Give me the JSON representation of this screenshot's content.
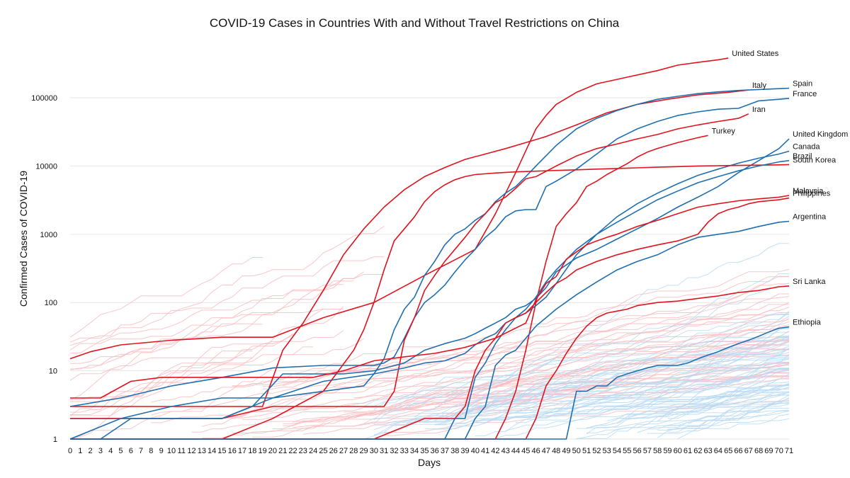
{
  "chart_data": {
    "type": "line",
    "title": "COVID-19 Cases in Countries With and Without Travel Restrictions on China",
    "xlabel": "Days",
    "ylabel": "Confirmed Cases of COVID-19",
    "yscale": "log",
    "xlim": [
      0,
      71
    ],
    "ylim": [
      1,
      400000
    ],
    "xticks": [
      0,
      1,
      2,
      3,
      4,
      5,
      6,
      7,
      8,
      9,
      10,
      11,
      12,
      13,
      14,
      15,
      16,
      17,
      18,
      19,
      20,
      21,
      22,
      23,
      24,
      25,
      26,
      27,
      28,
      29,
      30,
      31,
      32,
      33,
      34,
      35,
      36,
      37,
      38,
      39,
      40,
      41,
      42,
      43,
      44,
      45,
      46,
      47,
      48,
      49,
      50,
      51,
      52,
      53,
      54,
      55,
      56,
      57,
      58,
      59,
      60,
      61,
      62,
      63,
      64,
      65,
      66,
      67,
      68,
      69,
      70,
      71
    ],
    "yticks": [
      1,
      10,
      100,
      1000,
      10000,
      100000
    ],
    "yticklabels": [
      "1",
      "10",
      "100",
      "1000",
      "10000",
      "100000"
    ],
    "colors": {
      "restricted": "#e0141e",
      "unrestricted": "#1f6fb0",
      "restricted_light": "#f7b9bd",
      "unrestricted_light": "#b7d8f1"
    },
    "series": [
      {
        "name": "United States",
        "group": "restricted",
        "x": [
          0,
          2,
          5,
          10,
          15,
          20,
          25,
          30,
          35,
          40,
          42,
          44,
          46,
          47,
          48,
          50,
          52,
          55,
          58,
          60,
          62,
          64,
          65
        ],
        "y": [
          15,
          19,
          24,
          28,
          31,
          31,
          60,
          100,
          250,
          600,
          2000,
          8000,
          35000,
          55000,
          80000,
          120000,
          160000,
          200000,
          250000,
          300000,
          330000,
          360000,
          380000
        ]
      },
      {
        "name": "Italy",
        "group": "restricted",
        "x": [
          0,
          5,
          10,
          15,
          17,
          19,
          21,
          23,
          25,
          27,
          29,
          31,
          33,
          35,
          37,
          39,
          41,
          43,
          45,
          47,
          50,
          53,
          56,
          59,
          62,
          65,
          67
        ],
        "y": [
          3,
          3,
          3,
          3,
          3,
          3,
          20,
          50,
          150,
          500,
          1200,
          2500,
          4500,
          7000,
          9500,
          12500,
          15000,
          18000,
          22000,
          27000,
          40000,
          60000,
          80000,
          95000,
          110000,
          120000,
          130000
        ]
      },
      {
        "name": "Spain",
        "group": "unrestricted",
        "x": [
          0,
          5,
          10,
          15,
          20,
          25,
          29,
          30,
          31,
          32,
          33,
          34,
          35,
          36,
          37,
          38,
          39,
          40,
          41,
          42,
          43,
          44,
          45,
          46,
          48,
          50,
          52,
          54,
          56,
          58,
          60,
          62,
          64,
          66,
          68,
          70,
          71
        ],
        "y": [
          2,
          2,
          3,
          4,
          4,
          5,
          6,
          9,
          15,
          40,
          80,
          120,
          250,
          400,
          700,
          1000,
          1200,
          1600,
          2000,
          3000,
          4000,
          5000,
          7000,
          10000,
          20000,
          35000,
          50000,
          65000,
          80000,
          95000,
          105000,
          115000,
          122000,
          128000,
          132000,
          136000,
          138000
        ]
      },
      {
        "name": "France",
        "group": "unrestricted",
        "x": [
          0,
          5,
          10,
          15,
          20,
          25,
          29,
          30,
          31,
          32,
          33,
          34,
          35,
          36,
          37,
          38,
          39,
          40,
          41,
          42,
          43,
          44,
          45,
          46,
          47,
          48,
          50,
          52,
          54,
          56,
          58,
          60,
          62,
          64,
          66,
          68,
          70,
          71
        ],
        "y": [
          3,
          4,
          6,
          8,
          11,
          12,
          12,
          12,
          13,
          16,
          30,
          60,
          100,
          130,
          180,
          280,
          420,
          600,
          900,
          1200,
          1800,
          2200,
          2300,
          2300,
          5000,
          6000,
          9000,
          15000,
          25000,
          35000,
          45000,
          55000,
          62000,
          68000,
          70000,
          90000,
          95000,
          98000
        ]
      },
      {
        "name": "Iran",
        "group": "restricted",
        "x": [
          0,
          5,
          10,
          15,
          20,
          25,
          29,
          30,
          31,
          32,
          33,
          34,
          35,
          36,
          37,
          38,
          39,
          40,
          41,
          42,
          43,
          44,
          45,
          46,
          48,
          50,
          52,
          54,
          56,
          58,
          60,
          62,
          64,
          66,
          67
        ],
        "y": [
          2,
          2,
          2,
          2,
          3,
          3,
          3,
          3,
          3,
          5,
          28,
          60,
          150,
          250,
          400,
          600,
          900,
          1400,
          2000,
          2900,
          3500,
          4700,
          6500,
          7000,
          10000,
          14000,
          18000,
          21000,
          25000,
          29000,
          35000,
          40000,
          45000,
          50000,
          58000
        ]
      },
      {
        "name": "United Kingdom",
        "group": "unrestricted",
        "x": [
          0,
          3,
          6,
          9,
          12,
          15,
          18,
          21,
          24,
          27,
          30,
          33,
          35,
          37,
          39,
          40,
          41,
          42,
          43,
          44,
          45,
          46,
          47,
          48,
          50,
          52,
          54,
          56,
          58,
          60,
          62,
          64,
          66,
          68,
          70,
          71
        ],
        "y": [
          1,
          1,
          2,
          2,
          2,
          2,
          3,
          9,
          9,
          9,
          10,
          13,
          20,
          25,
          30,
          35,
          42,
          50,
          60,
          80,
          90,
          115,
          165,
          280,
          450,
          600,
          850,
          1200,
          1700,
          2500,
          3500,
          5000,
          8000,
          12000,
          18000,
          25000
        ]
      },
      {
        "name": "Turkey",
        "group": "restricted",
        "x": [
          0,
          5,
          10,
          15,
          20,
          25,
          30,
          35,
          40,
          41,
          42,
          43,
          44,
          45,
          46,
          47,
          48,
          49,
          50,
          51,
          52,
          53,
          54,
          55,
          56,
          57,
          58,
          60,
          62,
          63
        ],
        "y": [
          1,
          1,
          1,
          1,
          1,
          1,
          1,
          1,
          1,
          1,
          1,
          2,
          5,
          20,
          100,
          400,
          1300,
          2000,
          2900,
          5000,
          6000,
          7500,
          9000,
          10800,
          13500,
          16000,
          18100,
          22000,
          26000,
          28000
        ]
      },
      {
        "name": "Canada",
        "group": "unrestricted",
        "x": [
          0,
          5,
          10,
          15,
          20,
          25,
          30,
          33,
          35,
          37,
          39,
          40,
          41,
          42,
          43,
          44,
          45,
          46,
          47,
          48,
          50,
          52,
          54,
          56,
          58,
          60,
          62,
          64,
          66,
          68,
          70,
          71
        ],
        "y": [
          1,
          2,
          2,
          2,
          4,
          7,
          9,
          11,
          13,
          14,
          18,
          24,
          30,
          35,
          50,
          60,
          70,
          90,
          120,
          190,
          500,
          1000,
          1800,
          2800,
          4000,
          5500,
          7300,
          9000,
          11000,
          13000,
          15000,
          16500
        ]
      },
      {
        "name": "South Korea",
        "group": "restricted",
        "x": [
          0,
          5,
          10,
          15,
          20,
          25,
          28,
          29,
          30,
          31,
          32,
          33,
          34,
          35,
          36,
          37,
          38,
          39,
          40,
          42,
          44,
          46,
          48,
          50,
          52,
          54,
          56,
          58,
          60,
          62,
          64,
          66,
          68,
          70,
          71
        ],
        "y": [
          1,
          1,
          1,
          1,
          2,
          5,
          20,
          40,
          100,
          300,
          800,
          1200,
          1800,
          3000,
          4200,
          5300,
          6300,
          7000,
          7500,
          7900,
          8200,
          8400,
          8600,
          8800,
          9000,
          9200,
          9400,
          9600,
          9800,
          10000,
          10100,
          10200,
          10300,
          10400,
          10500
        ]
      },
      {
        "name": "Brazil",
        "group": "unrestricted",
        "x": [
          0,
          10,
          20,
          30,
          35,
          36,
          37,
          38,
          39,
          40,
          41,
          42,
          43,
          44,
          45,
          46,
          47,
          48,
          50,
          52,
          54,
          56,
          58,
          60,
          62,
          64,
          66,
          68,
          70,
          71
        ],
        "y": [
          1,
          1,
          1,
          1,
          1,
          1,
          1,
          2,
          2,
          8,
          13,
          25,
          40,
          60,
          80,
          120,
          200,
          300,
          600,
          1000,
          1500,
          2200,
          3200,
          4300,
          5700,
          7000,
          8500,
          10000,
          11500,
          12000
        ]
      },
      {
        "name": "Malaysia",
        "group": "restricted",
        "x": [
          0,
          3,
          6,
          9,
          12,
          15,
          18,
          21,
          24,
          27,
          30,
          33,
          36,
          39,
          42,
          45,
          46,
          47,
          48,
          49,
          50,
          51,
          52,
          53,
          54,
          56,
          58,
          60,
          62,
          64,
          66,
          68,
          70,
          71
        ],
        "y": [
          4,
          4,
          7,
          8,
          8,
          8,
          8,
          8,
          8,
          10,
          14,
          16,
          18,
          22,
          30,
          50,
          110,
          190,
          240,
          430,
          550,
          700,
          800,
          900,
          1000,
          1300,
          1600,
          2000,
          2500,
          2800,
          3100,
          3300,
          3500,
          3700
        ]
      },
      {
        "name": "Philippines",
        "group": "restricted",
        "x": [
          0,
          5,
          10,
          15,
          20,
          25,
          30,
          35,
          38,
          39,
          40,
          41,
          42,
          43,
          44,
          45,
          46,
          47,
          48,
          49,
          50,
          52,
          54,
          56,
          58,
          60,
          62,
          63,
          64,
          65,
          66,
          67,
          68,
          70,
          71
        ],
        "y": [
          1,
          1,
          1,
          1,
          1,
          1,
          1,
          2,
          2,
          3,
          10,
          20,
          30,
          50,
          60,
          70,
          100,
          140,
          190,
          230,
          300,
          400,
          500,
          600,
          700,
          800,
          1000,
          1500,
          2000,
          2300,
          2500,
          2800,
          3000,
          3200,
          3400
        ]
      },
      {
        "name": "Argentina",
        "group": "unrestricted",
        "x": [
          0,
          10,
          20,
          30,
          38,
          39,
          40,
          41,
          42,
          43,
          44,
          45,
          46,
          47,
          48,
          50,
          52,
          54,
          56,
          58,
          60,
          62,
          64,
          66,
          68,
          70,
          71
        ],
        "y": [
          1,
          1,
          1,
          1,
          1,
          1,
          2,
          3,
          12,
          17,
          20,
          30,
          45,
          60,
          80,
          130,
          200,
          300,
          400,
          500,
          700,
          900,
          1000,
          1100,
          1300,
          1500,
          1550
        ]
      },
      {
        "name": "Sri Lanka",
        "group": "restricted",
        "x": [
          0,
          10,
          20,
          30,
          40,
          45,
          46,
          47,
          48,
          49,
          50,
          51,
          52,
          53,
          54,
          55,
          56,
          58,
          60,
          62,
          64,
          66,
          68,
          70,
          71
        ],
        "y": [
          1,
          1,
          1,
          1,
          1,
          1,
          2,
          6,
          10,
          18,
          30,
          45,
          60,
          70,
          75,
          80,
          90,
          100,
          105,
          115,
          125,
          140,
          150,
          170,
          175
        ]
      },
      {
        "name": "Ethiopia",
        "group": "unrestricted",
        "x": [
          0,
          20,
          40,
          48,
          49,
          50,
          51,
          52,
          53,
          54,
          55,
          56,
          57,
          58,
          59,
          60,
          61,
          62,
          63,
          64,
          65,
          66,
          67,
          68,
          69,
          70,
          71
        ],
        "y": [
          1,
          1,
          1,
          1,
          1,
          5,
          5,
          6,
          6,
          8,
          9,
          10,
          11,
          12,
          12,
          12,
          13,
          15,
          17,
          19,
          22,
          25,
          28,
          32,
          37,
          42,
          44
        ]
      }
    ]
  }
}
